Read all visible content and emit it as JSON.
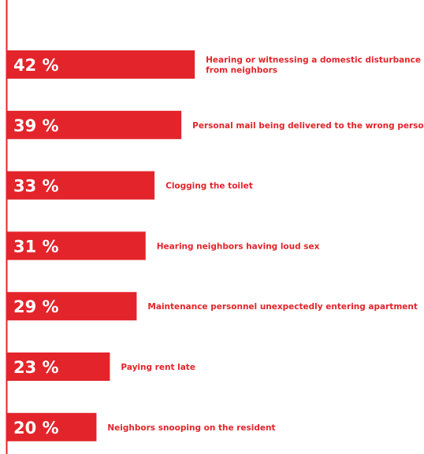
{
  "chart_data": {
    "type": "bar",
    "orientation": "horizontal",
    "categories": [
      [
        "Hearing or witnessing a domestic disturbance",
        "from neighbors"
      ],
      [
        "Personal mail being delivered to the wrong person"
      ],
      [
        "Clogging the toilet"
      ],
      [
        "Hearing neighbors having loud sex"
      ],
      [
        "Maintenance personnel unexpectedly entering apartment"
      ],
      [
        "Paying rent late"
      ],
      [
        "Neighbors snooping on the resident"
      ]
    ],
    "values": [
      42,
      39,
      33,
      31,
      29,
      23,
      20
    ],
    "value_labels": [
      "42 %",
      "39 %",
      "33 %",
      "31 %",
      "29 %",
      "23 %",
      "20 %"
    ],
    "unit": "%",
    "colors": {
      "bar": "#e3242b",
      "label": "#e3242b",
      "value_text": "#ffffff",
      "axis": "#e3242b"
    },
    "grid": false,
    "legend": "none"
  }
}
